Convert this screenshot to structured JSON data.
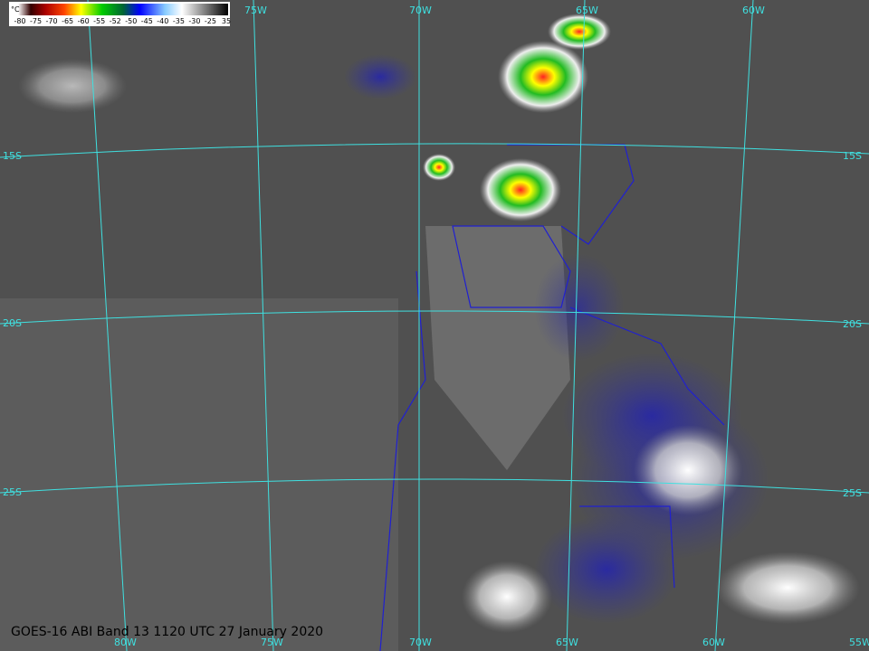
{
  "colorbar": {
    "unit": "°C",
    "labels": [
      "-80",
      "-75",
      "-70",
      "-65",
      "-60",
      "-55",
      "-52",
      "-50",
      "-45",
      "-40",
      "-35",
      "-30",
      "-25",
      "35"
    ]
  },
  "graticule": {
    "top": [
      "75W",
      "70W",
      "65W",
      "60W"
    ],
    "left": [
      "15S",
      "20S",
      "25S"
    ],
    "right": [
      "15S",
      "20S",
      "25S"
    ],
    "bottom": [
      "80W",
      "75W",
      "70W",
      "65W",
      "60W",
      "55W"
    ]
  },
  "caption": "GOES-16 ABI Band 13 1120 UTC 27 January 2020"
}
